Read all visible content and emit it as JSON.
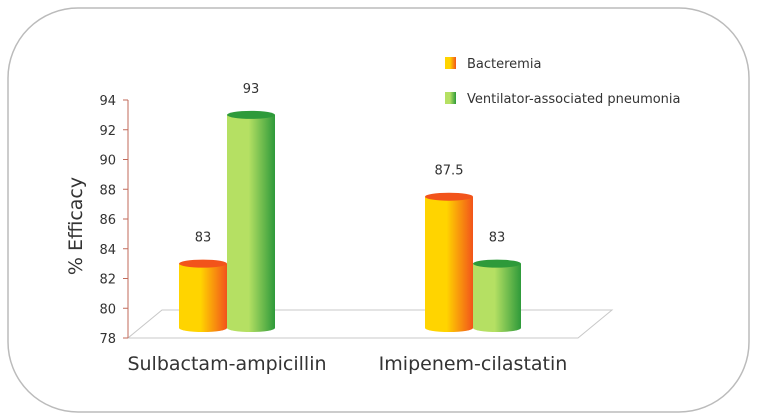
{
  "chart_data": {
    "type": "bar",
    "categories": [
      "Sulbactam-ampicillin",
      "Imipenem-cilastatin"
    ],
    "series": [
      {
        "name": "Bacteremia",
        "values": [
          83,
          87.5
        ],
        "color_light": "#ffd400",
        "color_dark": "#f2541b"
      },
      {
        "name": "Ventilator-associated pneumonia",
        "values": [
          93,
          83
        ],
        "color_light": "#b5e063",
        "color_dark": "#2e9a3a"
      }
    ],
    "data_labels": [
      [
        "83",
        "87.5"
      ],
      [
        "93",
        "83"
      ]
    ],
    "ylabel": "% Efficacy",
    "ylim": [
      78,
      94
    ],
    "yticks": [
      78,
      80,
      82,
      84,
      86,
      88,
      90,
      92,
      94
    ],
    "grid": false,
    "legend_position": "top-right",
    "frame_color": "#bbbbbb",
    "axis_color": "#c06a5a"
  }
}
